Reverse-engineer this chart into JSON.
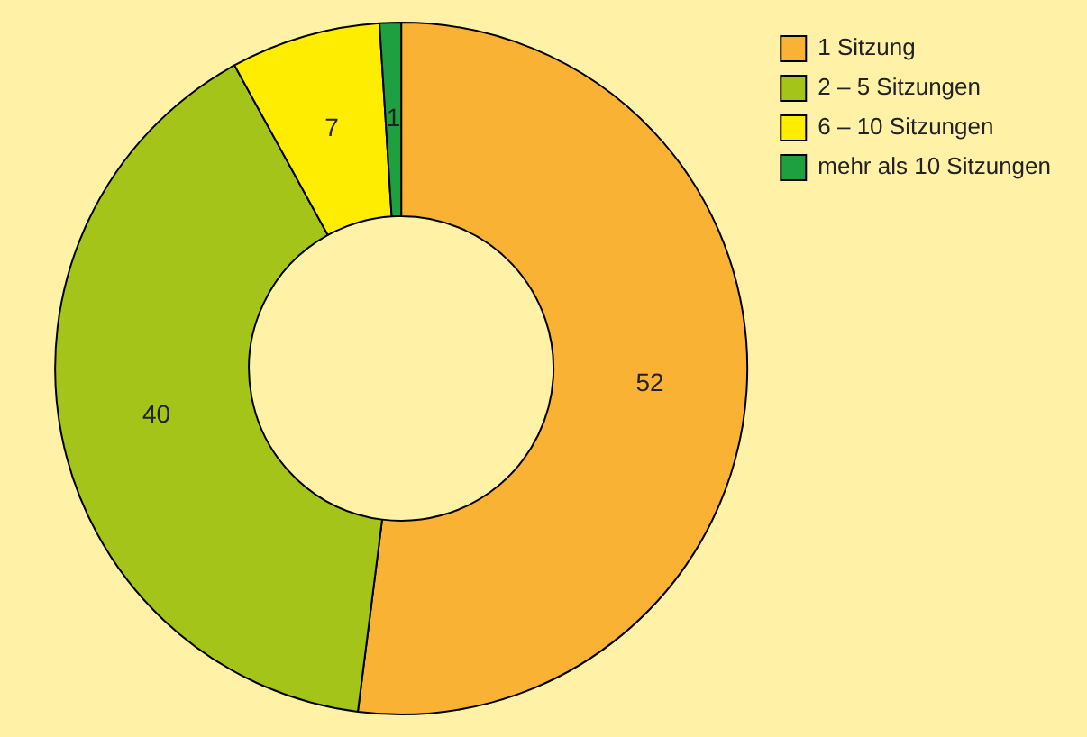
{
  "chart_data": {
    "type": "donut",
    "categories": [
      "1 Sitzung",
      "2 – 5 Sitzungen",
      "6 – 10 Sitzungen",
      "mehr als 10 Sitzungen"
    ],
    "values": [
      52,
      40,
      7,
      1
    ],
    "colors": [
      "#f9b233",
      "#a5c41a",
      "#ffed00",
      "#1fa040"
    ],
    "data_labels": true,
    "legend": "top right"
  }
}
